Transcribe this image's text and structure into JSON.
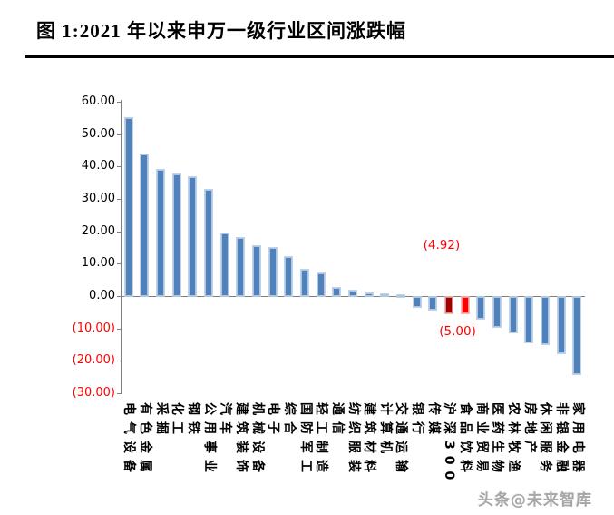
{
  "page": {
    "title": "图 1:2021 年以来申万一级行业区间涨跌幅"
  },
  "watermark": {
    "text": "头条@未来智库"
  },
  "colors": {
    "bar_default": "#4f81bd",
    "bar_highlight_dark_red": "#a00000",
    "bar_highlight_red": "#ff0000",
    "axis": "#7f7f7f",
    "negative_label": "#ff0000"
  },
  "chart_data": {
    "type": "bar",
    "title": "2021年以来申万一级行业区间涨跌幅",
    "xlabel": "",
    "ylabel": "",
    "ylim": [
      -30,
      60
    ],
    "grid": false,
    "legend": "none",
    "categories": [
      "电气设备",
      "有色金属",
      "采掘",
      "化工",
      "钢铁",
      "公用事业",
      "汽车",
      "建筑装饰",
      "机械设备",
      "电子",
      "综合",
      "国防军工",
      "轻工制造",
      "通信",
      "纺织服装",
      "建筑材料",
      "计算机",
      "交通运输",
      "银行",
      "传媒",
      "沪深300",
      "食品饮料",
      "商业贸易",
      "医药生物",
      "农林牧渔",
      "房地产",
      "休闲服务",
      "非银金融",
      "家用电器"
    ],
    "values": [
      55.0,
      43.8,
      38.9,
      37.5,
      36.7,
      32.7,
      19.3,
      17.9,
      15.5,
      14.9,
      12.0,
      8.2,
      7.1,
      2.5,
      1.6,
      0.9,
      0.5,
      0.4,
      -3.1,
      -3.8,
      -4.92,
      -5.0,
      -6.6,
      -9.3,
      -10.8,
      -14.0,
      -14.6,
      -17.4,
      -23.9
    ],
    "bar_colors": [
      "#4f81bd",
      "#4f81bd",
      "#4f81bd",
      "#4f81bd",
      "#4f81bd",
      "#4f81bd",
      "#4f81bd",
      "#4f81bd",
      "#4f81bd",
      "#4f81bd",
      "#4f81bd",
      "#4f81bd",
      "#4f81bd",
      "#4f81bd",
      "#4f81bd",
      "#4f81bd",
      "#4f81bd",
      "#4f81bd",
      "#4f81bd",
      "#4f81bd",
      "#a00000",
      "#ff0000",
      "#4f81bd",
      "#4f81bd",
      "#4f81bd",
      "#4f81bd",
      "#4f81bd",
      "#4f81bd",
      "#4f81bd"
    ],
    "y_ticks": [
      {
        "label": "60.00",
        "value": 60,
        "negative": false
      },
      {
        "label": "50.00",
        "value": 50,
        "negative": false
      },
      {
        "label": "40.00",
        "value": 40,
        "negative": false
      },
      {
        "label": "30.00",
        "value": 30,
        "negative": false
      },
      {
        "label": "20.00",
        "value": 20,
        "negative": false
      },
      {
        "label": "10.00",
        "value": 10,
        "negative": false
      },
      {
        "label": "0.00",
        "value": 0,
        "negative": false
      },
      {
        "label": "(10.00)",
        "value": -10,
        "negative": true
      },
      {
        "label": "(20.00)",
        "value": -20,
        "negative": true
      },
      {
        "label": "(30.00)",
        "value": -30,
        "negative": true
      }
    ],
    "annotations": [
      {
        "text": "(4.92)",
        "bar": "沪深300",
        "placement": "above"
      },
      {
        "text": "(5.00)",
        "bar": "食品饮料",
        "placement": "below"
      }
    ]
  }
}
